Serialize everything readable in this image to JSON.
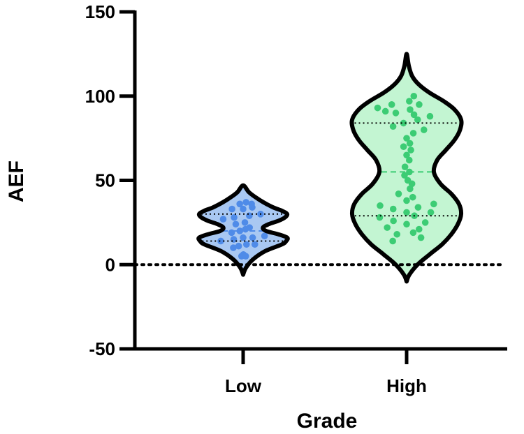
{
  "chart_data": {
    "type": "violin",
    "title": "",
    "xlabel": "Grade",
    "ylabel": "AEF",
    "ylim": [
      -50,
      150
    ],
    "yticks": [
      -50,
      0,
      50,
      100,
      150
    ],
    "reference_line_y": 0,
    "categories": [
      "Low",
      "High"
    ],
    "series": [
      {
        "category": "Low",
        "color": "#4f8be8",
        "fill": "#a9c8f2",
        "range": [
          -6,
          47
        ],
        "median": 20,
        "q1": 14,
        "q3": 30,
        "profile": [
          [
            -6,
            0.0
          ],
          [
            -2,
            0.06
          ],
          [
            3,
            0.22
          ],
          [
            8,
            0.5
          ],
          [
            12,
            0.88
          ],
          [
            14,
            0.98
          ],
          [
            16,
            1.0
          ],
          [
            18,
            0.8
          ],
          [
            20,
            0.52
          ],
          [
            22,
            0.45
          ],
          [
            24,
            0.58
          ],
          [
            26,
            0.8
          ],
          [
            28,
            0.95
          ],
          [
            30,
            1.0
          ],
          [
            32,
            0.88
          ],
          [
            34,
            0.68
          ],
          [
            37,
            0.46
          ],
          [
            40,
            0.28
          ],
          [
            43,
            0.13
          ],
          [
            47,
            0.0
          ]
        ],
        "points": [
          [
            5,
            -0.15
          ],
          [
            6,
            0.02
          ],
          [
            5,
            0.25
          ],
          [
            10,
            -0.45
          ],
          [
            11,
            -0.18
          ],
          [
            12,
            0.12
          ],
          [
            12,
            0.42
          ],
          [
            14,
            -0.72
          ],
          [
            15,
            -0.3
          ],
          [
            16,
            0.0
          ],
          [
            16,
            0.3
          ],
          [
            17,
            0.75
          ],
          [
            19,
            -0.55
          ],
          [
            20,
            -0.2
          ],
          [
            21,
            0.15
          ],
          [
            22,
            0.45
          ],
          [
            24,
            -0.4
          ],
          [
            25,
            0.08
          ],
          [
            27,
            -0.72
          ],
          [
            28,
            -0.3
          ],
          [
            29,
            0.2
          ],
          [
            30,
            0.55
          ],
          [
            33,
            -0.45
          ],
          [
            33,
            0.0
          ],
          [
            34,
            0.42
          ],
          [
            36,
            -0.2
          ],
          [
            37,
            0.2
          ],
          [
            36,
            0.5
          ]
        ]
      },
      {
        "category": "High",
        "color": "#3ccc74",
        "fill": "#c3f5d2",
        "range": [
          -10,
          125
        ],
        "median": 55,
        "q1": 29,
        "q3": 84,
        "profile": [
          [
            -10,
            0.0
          ],
          [
            -6,
            0.05
          ],
          [
            0,
            0.2
          ],
          [
            6,
            0.42
          ],
          [
            12,
            0.65
          ],
          [
            18,
            0.82
          ],
          [
            24,
            0.94
          ],
          [
            30,
            1.0
          ],
          [
            36,
            0.96
          ],
          [
            42,
            0.82
          ],
          [
            48,
            0.62
          ],
          [
            55,
            0.5
          ],
          [
            62,
            0.56
          ],
          [
            68,
            0.72
          ],
          [
            74,
            0.88
          ],
          [
            80,
            0.98
          ],
          [
            86,
            1.0
          ],
          [
            92,
            0.88
          ],
          [
            97,
            0.68
          ],
          [
            102,
            0.42
          ],
          [
            107,
            0.22
          ],
          [
            112,
            0.1
          ],
          [
            118,
            0.04
          ],
          [
            125,
            0.0
          ]
        ],
        "points": [
          [
            14,
            -0.5
          ],
          [
            16,
            0.48
          ],
          [
            18,
            -0.3
          ],
          [
            19,
            0.2
          ],
          [
            21,
            0.36
          ],
          [
            22,
            -0.55
          ],
          [
            24,
            0.0
          ],
          [
            25,
            0.5
          ],
          [
            26,
            -0.35
          ],
          [
            28,
            -0.7
          ],
          [
            29,
            0.2
          ],
          [
            31,
            0.62
          ],
          [
            31,
            0.0
          ],
          [
            33,
            -0.35
          ],
          [
            34,
            0.3
          ],
          [
            35,
            -0.7
          ],
          [
            36,
            0.72
          ],
          [
            38,
            0.0
          ],
          [
            40,
            0.18
          ],
          [
            42,
            -0.25
          ],
          [
            45,
            0.12
          ],
          [
            48,
            0.22
          ],
          [
            50,
            0.05
          ],
          [
            53,
            -0.1
          ],
          [
            55,
            0.14
          ],
          [
            58,
            -0.08
          ],
          [
            62,
            0.12
          ],
          [
            65,
            0.0
          ],
          [
            68,
            0.15
          ],
          [
            70,
            -0.1
          ],
          [
            72,
            0.1
          ],
          [
            75,
            0.0
          ],
          [
            78,
            0.18
          ],
          [
            80,
            0.45
          ],
          [
            82,
            -0.35
          ],
          [
            84,
            -0.08
          ],
          [
            86,
            0.28
          ],
          [
            88,
            0.62
          ],
          [
            89,
            0.2
          ],
          [
            90,
            -0.3
          ],
          [
            91,
            -0.6
          ],
          [
            92,
            0.1
          ],
          [
            93,
            -0.88
          ],
          [
            95,
            -0.5
          ],
          [
            95,
            0.42
          ],
          [
            97,
            0.1
          ],
          [
            100,
            0.35
          ]
        ]
      }
    ]
  }
}
